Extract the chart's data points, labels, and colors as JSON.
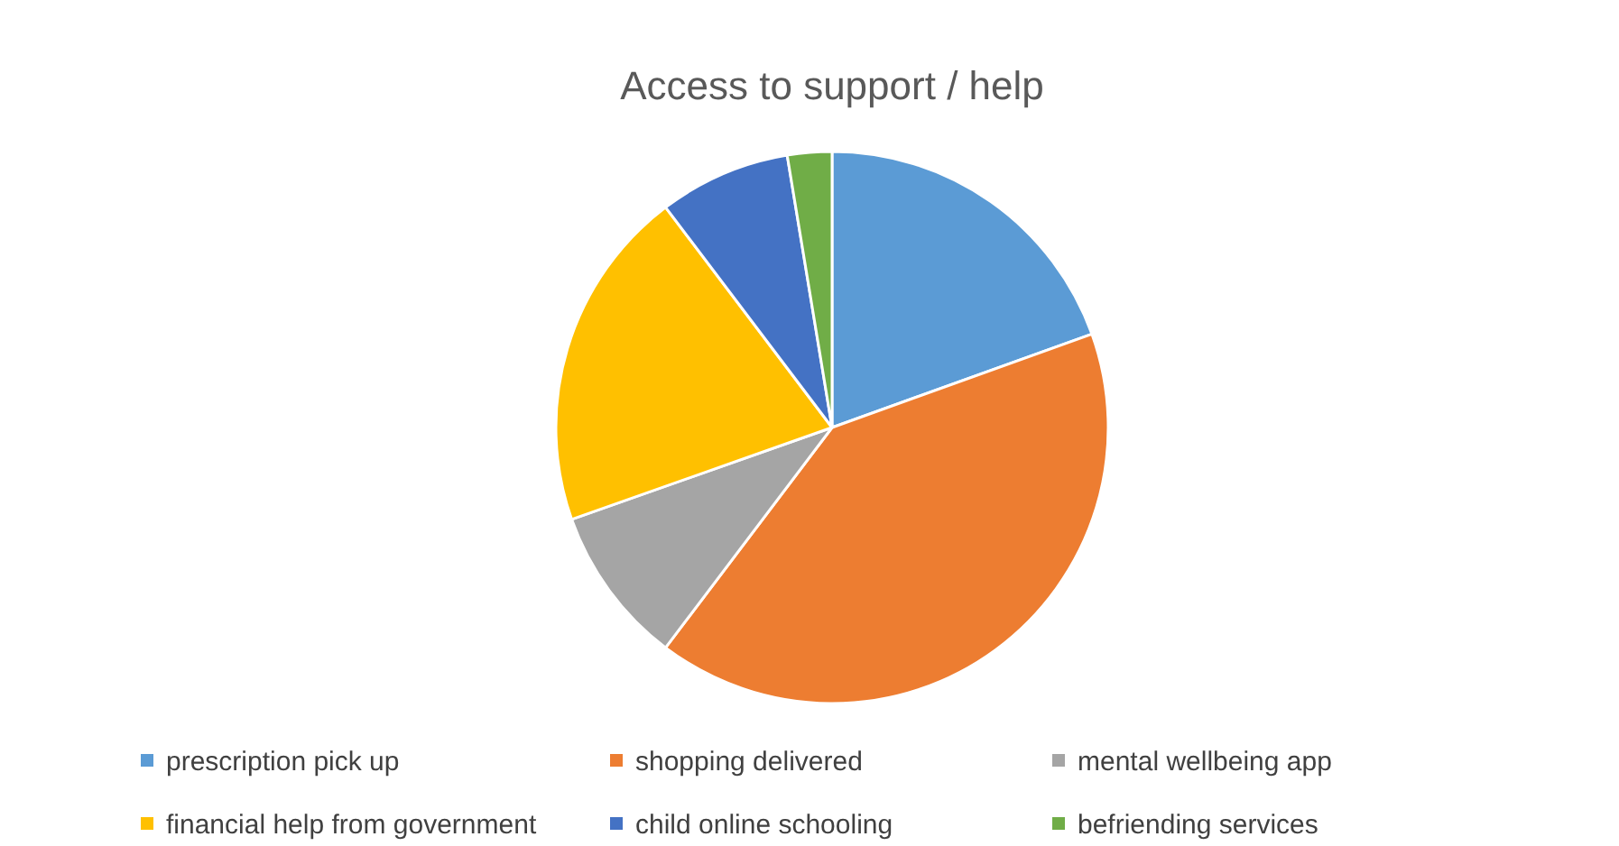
{
  "chart_data": {
    "type": "pie",
    "title": "Access to support / help",
    "categories": [
      "prescription pick up",
      "shopping delivered",
      "mental wellbeing app",
      "financial help from government",
      "child online schooling",
      "befriending services"
    ],
    "values": [
      19.5,
      40.8,
      9.3,
      20.1,
      7.7,
      2.6
    ],
    "colors": [
      "#5b9bd5",
      "#ed7d31",
      "#a5a5a5",
      "#ffc000",
      "#4472c4",
      "#70ad47"
    ],
    "legend": "bottom"
  }
}
